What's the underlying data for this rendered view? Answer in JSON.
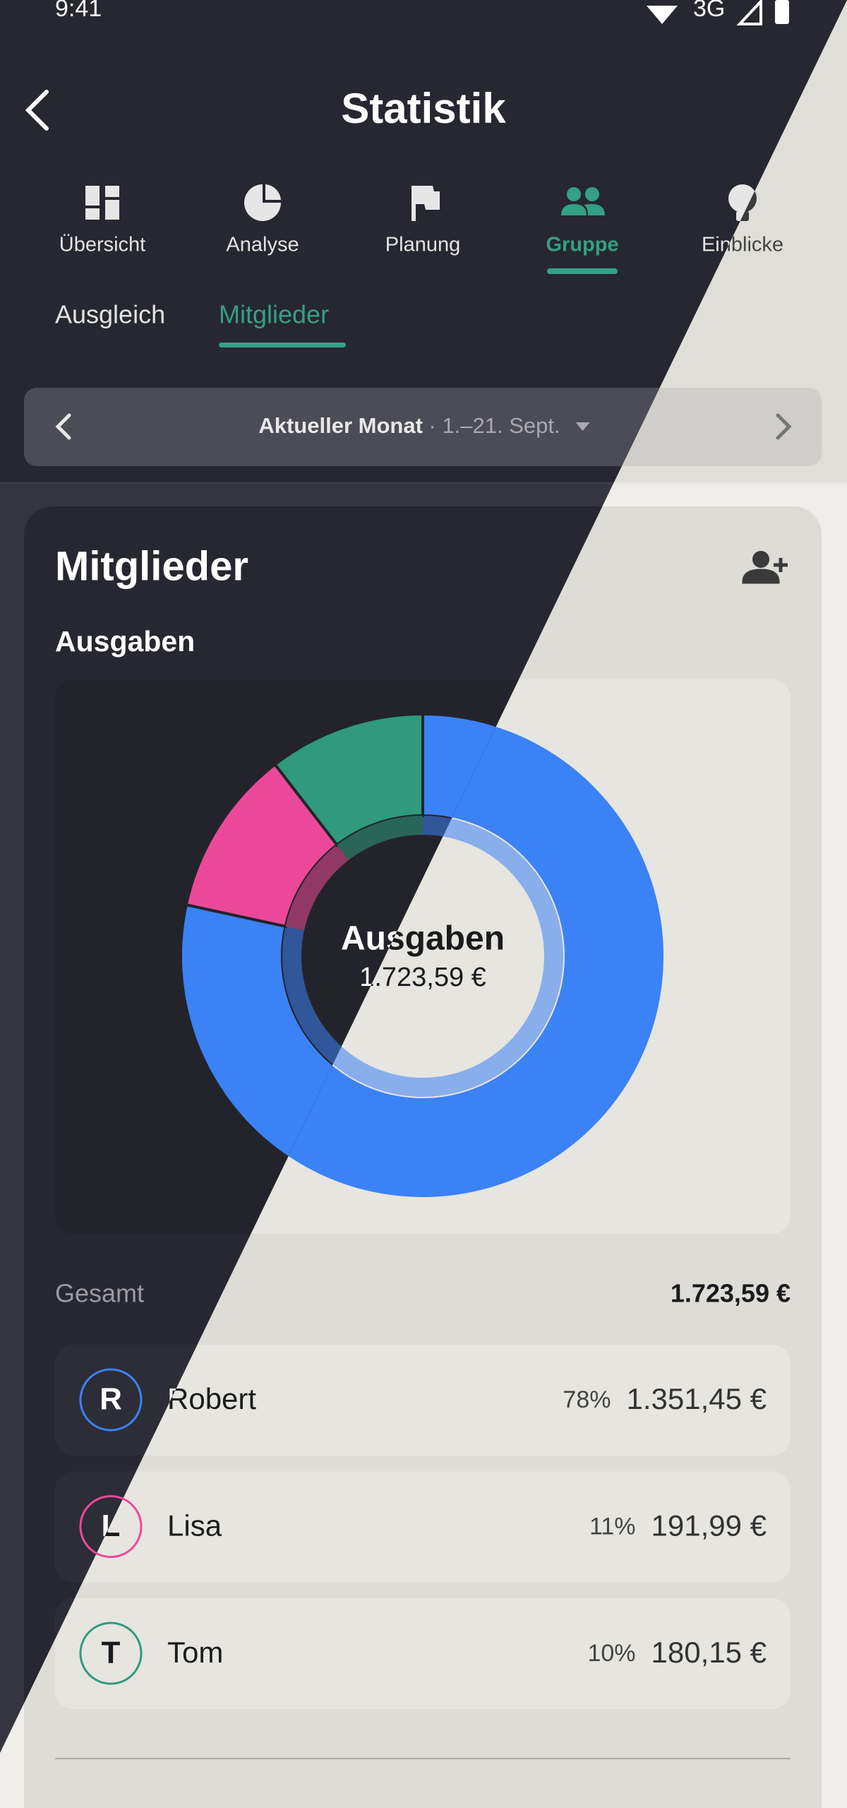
{
  "status": {
    "time": "9:41",
    "network": "3G"
  },
  "header": {
    "title": "Statistik"
  },
  "tabs": [
    "Übersicht",
    "Analyse",
    "Planung",
    "Gruppe",
    "Einblicke"
  ],
  "subtabs": [
    "Ausgleich",
    "Mitglieder"
  ],
  "period": {
    "label": "Aktueller Monat",
    "range": " · 1.–21. Sept."
  },
  "card": {
    "title": "Mitglieder",
    "subtitle": "Ausgaben"
  },
  "chart_data": {
    "type": "pie",
    "donut": true,
    "categories": [
      "Robert",
      "Lisa",
      "Tom"
    ],
    "values": [
      1351.45,
      191.99,
      180.15
    ],
    "colors": [
      "#3b82f6",
      "#ec4899",
      "#2f9a7e"
    ],
    "center_title": "Ausgaben",
    "center_value": "1.723,59 €"
  },
  "total": {
    "label": "Gesamt",
    "value": "1.723,59 €"
  },
  "members": [
    {
      "initial": "R",
      "name": "Robert",
      "share": "78%",
      "amount": "1.351,45 €"
    },
    {
      "initial": "L",
      "name": "Lisa",
      "share": "11%",
      "amount": "191,99 €"
    },
    {
      "initial": "T",
      "name": "Tom",
      "share": "10%",
      "amount": "180,15 €"
    }
  ]
}
